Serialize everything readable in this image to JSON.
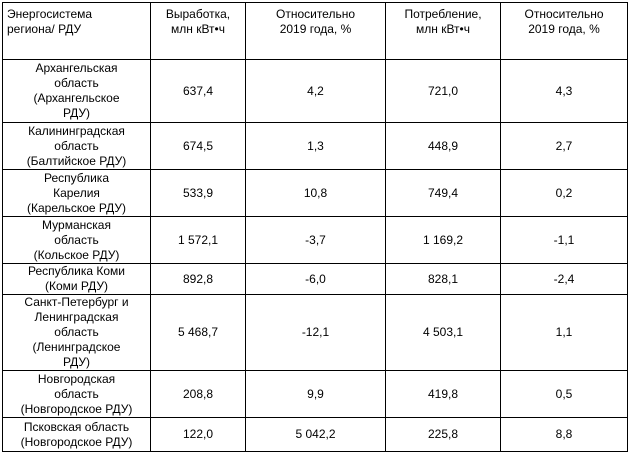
{
  "table": {
    "header": [
      [
        "Энергосистема",
        "региона/ РДУ"
      ],
      [
        "Выработка,",
        "млн кВт•ч"
      ],
      [
        "Относительно",
        "2019 года, %"
      ],
      [
        "Потребление,",
        "млн кВт•ч"
      ],
      [
        "Относительно",
        "2019 года, %"
      ]
    ],
    "rows": [
      [
        [
          "Архангельская",
          "область",
          "(Архангельское",
          "РДУ)"
        ],
        [
          "637,4"
        ],
        [
          "4,2"
        ],
        [
          "721,0"
        ],
        [
          "4,3"
        ]
      ],
      [
        [
          "Калининградская",
          "область",
          "(Балтийское РДУ)"
        ],
        [
          "674,5"
        ],
        [
          "1,3"
        ],
        [
          "448,9"
        ],
        [
          "2,7"
        ]
      ],
      [
        [
          "Республика",
          "Карелия",
          "(Карельское РДУ)"
        ],
        [
          "533,9"
        ],
        [
          "10,8"
        ],
        [
          "749,4"
        ],
        [
          "0,2"
        ]
      ],
      [
        [
          "Мурманская",
          "область",
          "(Кольское РДУ)"
        ],
        [
          "1 572,1"
        ],
        [
          "-3,7"
        ],
        [
          "1 169,2"
        ],
        [
          "-1,1"
        ]
      ],
      [
        [
          "Республика Коми",
          "(Коми РДУ)"
        ],
        [
          "892,8"
        ],
        [
          "-6,0"
        ],
        [
          "828,1"
        ],
        [
          "-2,4"
        ]
      ],
      [
        [
          "Санкт-Петербург и",
          "Ленинградская",
          "область",
          "(Ленинградское",
          "РДУ)"
        ],
        [
          "5 468,7"
        ],
        [
          "-12,1"
        ],
        [
          "4 503,1"
        ],
        [
          "1,1"
        ]
      ],
      [
        [
          "Новгородская",
          "область",
          "(Новгородское РДУ)"
        ],
        [
          "208,8"
        ],
        [
          "9,9"
        ],
        [
          "419,8"
        ],
        [
          "0,5"
        ]
      ],
      [
        [
          "Псковская область",
          "(Новгородское РДУ)"
        ],
        [
          "122,0"
        ],
        [
          "5 042,2"
        ],
        [
          "225,8"
        ],
        [
          "8,8"
        ]
      ]
    ]
  }
}
